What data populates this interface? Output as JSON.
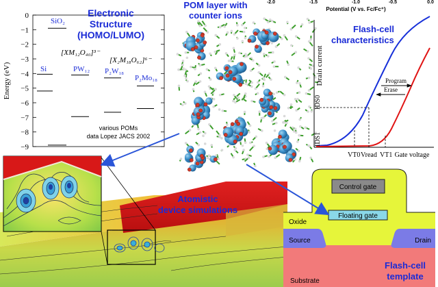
{
  "energy_panel": {
    "title_line1": "Electronic",
    "title_line2": "Structure",
    "title_line3": "(HOMO/LUMO)",
    "ylabel": "Energy (eV)",
    "ticks": [
      "0",
      "−1",
      "−2",
      "−3",
      "−4",
      "−5",
      "−6",
      "−7",
      "−8",
      "−9"
    ],
    "formula1": "[XM₁₂O₄₀]³⁻",
    "formula2": "[X₂M₁₈O₆₂]⁶⁻",
    "labels": {
      "sio2": "SiO₂",
      "si": "Si",
      "pw12": "PW₁₂",
      "p2w18": "P₂W₁₈",
      "p2mo18": "P₂Mo₁₈"
    },
    "note_line1": "various POMs",
    "note_line2": "data Lopez JACS 2002",
    "levels": [
      {
        "name": "SiO2",
        "homo": -8.9,
        "lumo": -0.9
      },
      {
        "name": "Si",
        "homo": -5.2,
        "lumo": -4.05
      },
      {
        "name": "PW12",
        "homo": -6.95,
        "lumo": -4.1
      },
      {
        "name": "P2W18",
        "homo": -6.65,
        "lumo": -4.3
      },
      {
        "name": "P2Mo18",
        "homo": -6.4,
        "lumo": -4.85
      }
    ]
  },
  "pom_panel": {
    "label_line1": "POM layer with",
    "label_line2": "counter ions"
  },
  "flash_char": {
    "axis_top_label": "Potential (V vs. Fc/Fc⁺)",
    "top_ticks": [
      "-2.0",
      "-1.5",
      "-1.0",
      "-0.5",
      "0.0"
    ],
    "title_line1": "Flash-cell",
    "title_line2": "characteristics",
    "ylabel": "Drain current",
    "xlabel": "Gate voltage",
    "program": "Program",
    "erase": "Erase",
    "ids0": "I₀ₛ₀",
    "ids1": "I₀ₛ₁",
    "vt0": "Vₜ₀",
    "vread": "Vᵣₑₐₐ",
    "vt1": "Vₜ₁"
  },
  "flash_char_text": {
    "ids0": "IDS0",
    "ids1": "IDS1",
    "vt0": "VT0",
    "vread": "Vread",
    "vt1": "VT1"
  },
  "simulation": {
    "label_line1": "Atomistic",
    "label_line2": "device simulations"
  },
  "cell_template": {
    "control_gate": "Control gate",
    "floating_gate": "Floating gate",
    "oxide": "Oxide",
    "source": "Source",
    "drain": "Drain",
    "substrate": "Substrate",
    "title_line1": "Flash-cell",
    "title_line2": "template"
  },
  "colors": {
    "title_blue": "#1a2bd6",
    "erase_blue": "#1730d9",
    "program_red": "#e01414",
    "oxide_yellow": "#e6f53a",
    "source_purple": "#7b7be6",
    "substrate_pink": "#f27a7a"
  }
}
